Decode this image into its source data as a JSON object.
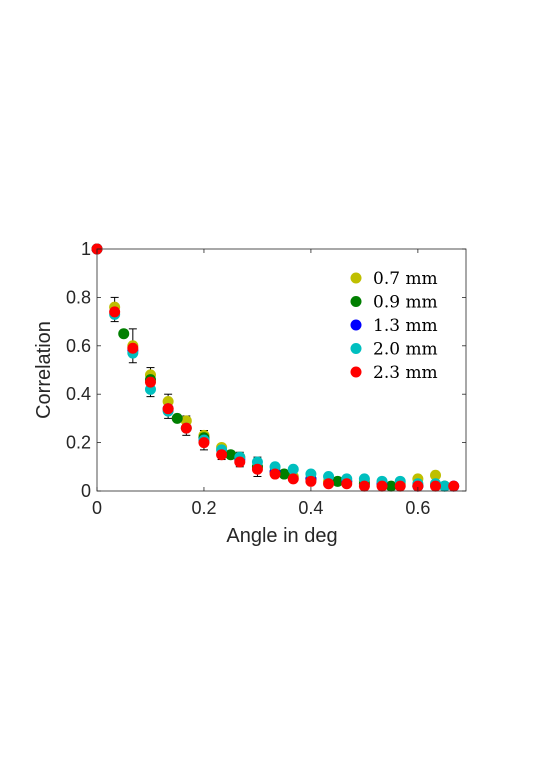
{
  "chart_data": {
    "type": "scatter",
    "title": "",
    "xlabel": "Angle in deg",
    "ylabel": "Correlation",
    "xlim": [
      0,
      0.69
    ],
    "ylim": [
      0,
      1
    ],
    "xticks": [
      "0",
      "0.2",
      "0.4",
      "0.6"
    ],
    "xtick_values": [
      0,
      0.2,
      0.4,
      0.6
    ],
    "yticks": [
      "0",
      "0.2",
      "0.4",
      "0.6",
      "0.8",
      "1"
    ],
    "ytick_values": [
      0,
      0.2,
      0.4,
      0.6,
      0.8,
      1
    ],
    "grid": false,
    "legend_position": "top-right",
    "series": [
      {
        "name": "0.7 mm",
        "color": "#bfbf00",
        "x": [
          0,
          0.033,
          0.067,
          0.1,
          0.133,
          0.167,
          0.2,
          0.233,
          0.267,
          0.3,
          0.333,
          0.367,
          0.4,
          0.433,
          0.467,
          0.5,
          0.533,
          0.567,
          0.6,
          0.633
        ],
        "y": [
          1,
          0.76,
          0.6,
          0.48,
          0.37,
          0.29,
          0.23,
          0.18,
          0.14,
          0.1,
          0.08,
          0.06,
          0.05,
          0.04,
          0.04,
          0.04,
          0.03,
          0.03,
          0.05,
          0.065
        ]
      },
      {
        "name": "0.9 mm",
        "color": "#007f00",
        "x": [
          0,
          0.05,
          0.1,
          0.15,
          0.2,
          0.25,
          0.3,
          0.35,
          0.4,
          0.45,
          0.5,
          0.55,
          0.6,
          0.65
        ],
        "y": [
          1,
          0.65,
          0.46,
          0.3,
          0.22,
          0.15,
          0.1,
          0.07,
          0.05,
          0.04,
          0.03,
          0.02,
          0.02,
          0.02
        ]
      },
      {
        "name": "1.3 mm",
        "color": "#0000ff",
        "x": [
          0,
          0.067,
          0.133,
          0.2,
          0.267,
          0.333,
          0.4,
          0.467,
          0.533,
          0.6,
          0.667
        ],
        "y": [
          1,
          0.58,
          0.34,
          0.21,
          0.13,
          0.08,
          0.05,
          0.04,
          0.03,
          0.02,
          0.02
        ]
      },
      {
        "name": "2.0 mm",
        "color": "#00bfbf",
        "x": [
          0,
          0.033,
          0.067,
          0.1,
          0.133,
          0.167,
          0.2,
          0.233,
          0.267,
          0.3,
          0.333,
          0.367,
          0.4,
          0.433,
          0.467,
          0.5,
          0.533,
          0.567,
          0.6,
          0.633,
          0.65
        ],
        "y": [
          1,
          0.73,
          0.57,
          0.42,
          0.33,
          0.26,
          0.21,
          0.17,
          0.14,
          0.12,
          0.1,
          0.09,
          0.07,
          0.06,
          0.05,
          0.05,
          0.04,
          0.04,
          0.03,
          0.03,
          0.02
        ]
      },
      {
        "name": "2.3 mm",
        "color": "#ff0000",
        "x": [
          0,
          0.033,
          0.067,
          0.1,
          0.133,
          0.167,
          0.2,
          0.233,
          0.267,
          0.3,
          0.333,
          0.367,
          0.4,
          0.433,
          0.467,
          0.5,
          0.533,
          0.567,
          0.6,
          0.633,
          0.667
        ],
        "y": [
          1,
          0.74,
          0.59,
          0.45,
          0.34,
          0.26,
          0.2,
          0.15,
          0.12,
          0.09,
          0.07,
          0.05,
          0.04,
          0.03,
          0.03,
          0.02,
          0.02,
          0.02,
          0.02,
          0.02,
          0.02
        ]
      }
    ],
    "error_bars": {
      "color": "#000000",
      "x": [
        0.033,
        0.067,
        0.1,
        0.133,
        0.167,
        0.2,
        0.233,
        0.267,
        0.3,
        0.333,
        0.367
      ],
      "y": [
        0.75,
        0.6,
        0.45,
        0.35,
        0.27,
        0.21,
        0.16,
        0.13,
        0.1,
        0.08,
        0.06
      ],
      "err": [
        0.05,
        0.07,
        0.06,
        0.05,
        0.04,
        0.04,
        0.03,
        0.03,
        0.04,
        0.02,
        0.02
      ]
    }
  }
}
